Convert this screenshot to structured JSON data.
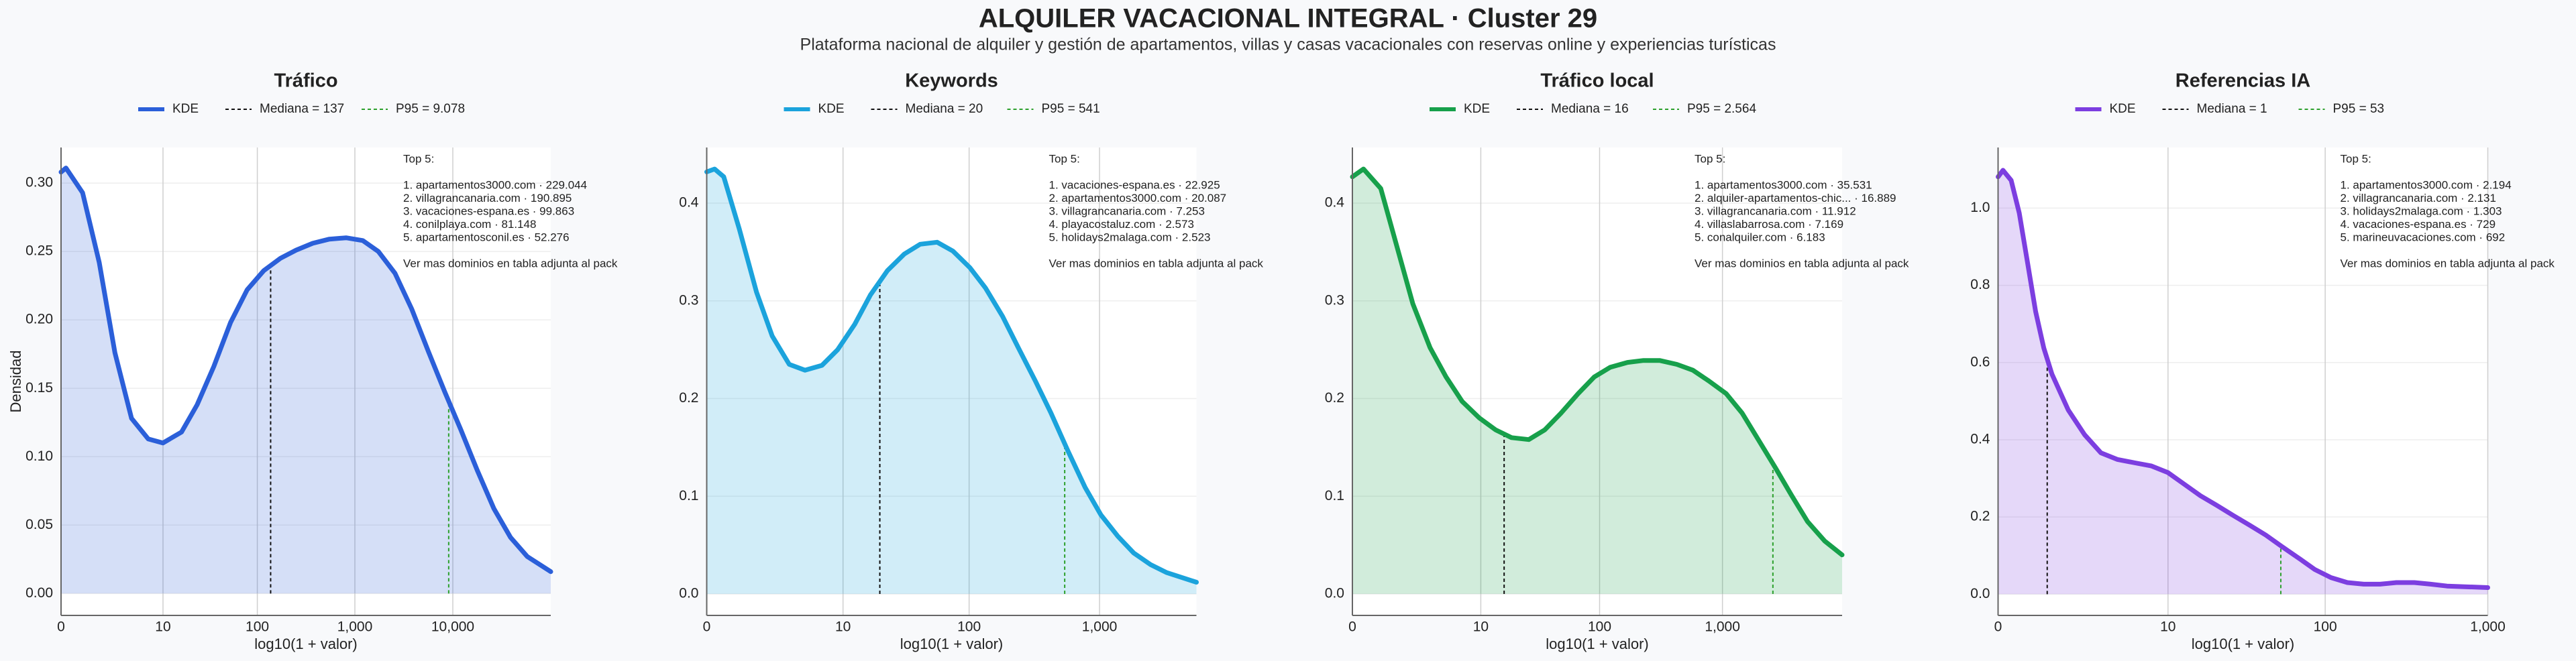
{
  "title": "ALQUILER VACACIONAL INTEGRAL · Cluster 29",
  "subtitle": "Plataforma nacional de alquiler y gestión de apartamentos, villas y casas vacacionales con reservas online y experiencias turísticas",
  "chart_data": [
    {
      "type": "area",
      "title": "Tráfico",
      "xlabel": "log10(1 + valor)",
      "ylabel": "Densidad",
      "grid": true,
      "x": [
        0,
        0.05,
        0.22,
        0.39,
        0.55,
        0.72,
        0.89,
        1.04,
        1.23,
        1.39,
        1.56,
        1.73,
        1.9,
        2.07,
        2.24,
        2.4,
        2.57,
        2.74,
        2.91,
        3.08,
        3.24,
        3.41,
        3.58,
        3.75,
        3.92,
        4.08,
        4.25,
        4.42,
        4.59,
        4.76,
        5.0
      ],
      "series": [
        {
          "name": "KDE",
          "color": "#2b5fd9",
          "values": [
            0.308,
            0.311,
            0.293,
            0.242,
            0.176,
            0.128,
            0.113,
            0.11,
            0.118,
            0.138,
            0.166,
            0.198,
            0.222,
            0.236,
            0.245,
            0.251,
            0.256,
            0.259,
            0.26,
            0.258,
            0.25,
            0.234,
            0.208,
            0.177,
            0.147,
            0.12,
            0.09,
            0.062,
            0.041,
            0.027,
            0.016
          ]
        }
      ],
      "reference_lines": [
        {
          "name": "Mediana = 137",
          "color": "#111111",
          "x": 2.14
        },
        {
          "name": "P95 = 9.078",
          "color": "#2ca02c",
          "x": 3.958
        }
      ],
      "xlim": [
        0,
        5.0
      ],
      "ylim": [
        -0.016,
        0.326
      ],
      "xticks": [
        0,
        {
          "value": 1.041,
          "label": "10"
        },
        {
          "value": 2.004,
          "label": "100"
        },
        {
          "value": 3.0,
          "label": "1,000"
        },
        {
          "value": 4.0,
          "label": "10,000"
        }
      ],
      "yticks": [
        {
          "value": 0,
          "label": "0.00"
        },
        0.05,
        {
          "value": 0.1,
          "label": "0.10"
        },
        0.15,
        {
          "value": 0.2,
          "label": "0.20"
        },
        0.25,
        {
          "value": 0.3,
          "label": "0.30"
        }
      ],
      "annotation": {
        "title": "Top 5:",
        "lines": [
          "1. apartamentos3000.com · 229.044",
          "2. villagrancanaria.com · 190.895",
          "3. vacaciones-espana.es · 99.863",
          "4. conilplaya.com · 81.148",
          "5. apartamentosconil.es · 52.276"
        ],
        "note": "Ver mas dominios en tabla adjunta al pack"
      }
    },
    {
      "type": "area",
      "title": "Keywords",
      "xlabel": "log10(1 + valor)",
      "grid": true,
      "x": [
        0,
        0.06,
        0.13,
        0.25,
        0.38,
        0.5,
        0.63,
        0.75,
        0.88,
        1.0,
        1.13,
        1.25,
        1.38,
        1.51,
        1.63,
        1.76,
        1.88,
        2.01,
        2.13,
        2.26,
        2.38,
        2.51,
        2.63,
        2.76,
        2.89,
        3.01,
        3.14,
        3.26,
        3.39,
        3.51,
        3.74
      ],
      "series": [
        {
          "name": "KDE",
          "color": "#1ba3dc",
          "values": [
            0.432,
            0.435,
            0.427,
            0.373,
            0.309,
            0.264,
            0.235,
            0.229,
            0.234,
            0.25,
            0.276,
            0.306,
            0.331,
            0.348,
            0.358,
            0.36,
            0.351,
            0.334,
            0.313,
            0.284,
            0.252,
            0.218,
            0.185,
            0.146,
            0.109,
            0.081,
            0.059,
            0.042,
            0.03,
            0.022,
            0.012
          ]
        }
      ],
      "reference_lines": [
        {
          "name": "Mediana = 20",
          "color": "#111111",
          "x": 1.322
        },
        {
          "name": "P95 = 541",
          "color": "#2ca02c",
          "x": 2.734
        }
      ],
      "xlim": [
        0,
        3.74
      ],
      "ylim": [
        -0.022,
        0.457
      ],
      "xticks": [
        0,
        {
          "value": 1.041,
          "label": "10"
        },
        {
          "value": 2.004,
          "label": "100"
        },
        {
          "value": 3.0,
          "label": "1,000"
        }
      ],
      "yticks": [
        {
          "value": 0,
          "label": "0.0"
        },
        0.1,
        0.2,
        0.3,
        0.4
      ],
      "annotation": {
        "title": "Top 5:",
        "lines": [
          "1. vacaciones-espana.es · 22.925",
          "2. apartamentos3000.com · 20.087",
          "3. villagrancanaria.com · 7.253",
          "4. playacostaluz.com · 2.573",
          "5. holidays2malaga.com · 2.523"
        ],
        "note": "Ver mas dominios en tabla adjunta al pack"
      }
    },
    {
      "type": "area",
      "title": "Tráfico local",
      "xlabel": "log10(1 + valor)",
      "grid": true,
      "x": [
        0,
        0.09,
        0.23,
        0.36,
        0.49,
        0.63,
        0.76,
        0.89,
        1.03,
        1.16,
        1.29,
        1.43,
        1.56,
        1.69,
        1.83,
        1.96,
        2.09,
        2.23,
        2.36,
        2.49,
        2.63,
        2.76,
        2.89,
        3.03,
        3.16,
        3.29,
        3.43,
        3.56,
        3.69,
        3.83,
        3.97
      ],
      "series": [
        {
          "name": "KDE",
          "color": "#17a04b",
          "values": [
            0.427,
            0.435,
            0.415,
            0.356,
            0.297,
            0.252,
            0.222,
            0.197,
            0.18,
            0.168,
            0.16,
            0.158,
            0.168,
            0.185,
            0.205,
            0.222,
            0.232,
            0.237,
            0.239,
            0.239,
            0.235,
            0.229,
            0.218,
            0.205,
            0.185,
            0.158,
            0.129,
            0.101,
            0.074,
            0.054,
            0.04
          ]
        }
      ],
      "reference_lines": [
        {
          "name": "Mediana = 16",
          "color": "#111111",
          "x": 1.23
        },
        {
          "name": "P95 = 2.564",
          "color": "#2ca02c",
          "x": 3.409
        }
      ],
      "xlim": [
        0,
        3.97
      ],
      "ylim": [
        -0.022,
        0.457
      ],
      "xticks": [
        0,
        {
          "value": 1.041,
          "label": "10"
        },
        {
          "value": 2.004,
          "label": "100"
        },
        {
          "value": 3.0,
          "label": "1,000"
        }
      ],
      "yticks": [
        {
          "value": 0,
          "label": "0.0"
        },
        0.1,
        0.2,
        0.3,
        0.4
      ],
      "annotation": {
        "title": "Top 5:",
        "lines": [
          "1. apartamentos3000.com · 35.531",
          "2. alquiler-apartamentos-chic... · 16.889",
          "3. villagrancanaria.com · 11.912",
          "4. villaslabarrosa.com · 7.169",
          "5. conalquiler.com · 6.183"
        ],
        "note": "Ver mas dominios en tabla adjunta al pack"
      }
    },
    {
      "type": "area",
      "title": "Referencias IA",
      "xlabel": "log10(1 + valor)",
      "grid": true,
      "x": [
        0,
        0.03,
        0.08,
        0.13,
        0.18,
        0.23,
        0.28,
        0.33,
        0.43,
        0.53,
        0.63,
        0.73,
        0.84,
        0.94,
        1.04,
        1.14,
        1.24,
        1.34,
        1.44,
        1.54,
        1.64,
        1.74,
        1.84,
        1.94,
        2.04,
        2.14,
        2.24,
        2.34,
        2.44,
        2.55,
        2.65,
        2.75,
        3.0
      ],
      "series": [
        {
          "name": "KDE",
          "color": "#7c3ee0",
          "values": [
            1.081,
            1.098,
            1.072,
            0.987,
            0.86,
            0.732,
            0.638,
            0.57,
            0.477,
            0.413,
            0.366,
            0.349,
            0.34,
            0.332,
            0.315,
            0.285,
            0.255,
            0.23,
            0.204,
            0.179,
            0.153,
            0.123,
            0.094,
            0.064,
            0.043,
            0.03,
            0.026,
            0.026,
            0.03,
            0.03,
            0.026,
            0.021,
            0.017
          ]
        }
      ],
      "reference_lines": [
        {
          "name": "Mediana = 1",
          "color": "#111111",
          "x": 0.301
        },
        {
          "name": "P95 = 53",
          "color": "#2ca02c",
          "x": 1.732
        }
      ],
      "xlim": [
        0,
        3.0
      ],
      "ylim": [
        -0.055,
        1.157
      ],
      "xticks": [
        0,
        {
          "value": 1.041,
          "label": "10"
        },
        {
          "value": 2.004,
          "label": "100"
        },
        {
          "value": 3.0,
          "label": "1,000"
        }
      ],
      "yticks": [
        {
          "value": 0,
          "label": "0.0"
        },
        0.2,
        0.4,
        0.6,
        0.8,
        {
          "value": 1,
          "label": "1.0"
        }
      ],
      "annotation": {
        "title": "Top 5:",
        "lines": [
          "1. apartamentos3000.com · 2.194",
          "2. villagrancanaria.com · 2.131",
          "3. holidays2malaga.com · 1.303",
          "4. vacaciones-espana.es · 729",
          "5. marineuvacaciones.com · 692"
        ],
        "note": "Ver mas dominios en tabla adjunta al pack"
      }
    }
  ]
}
